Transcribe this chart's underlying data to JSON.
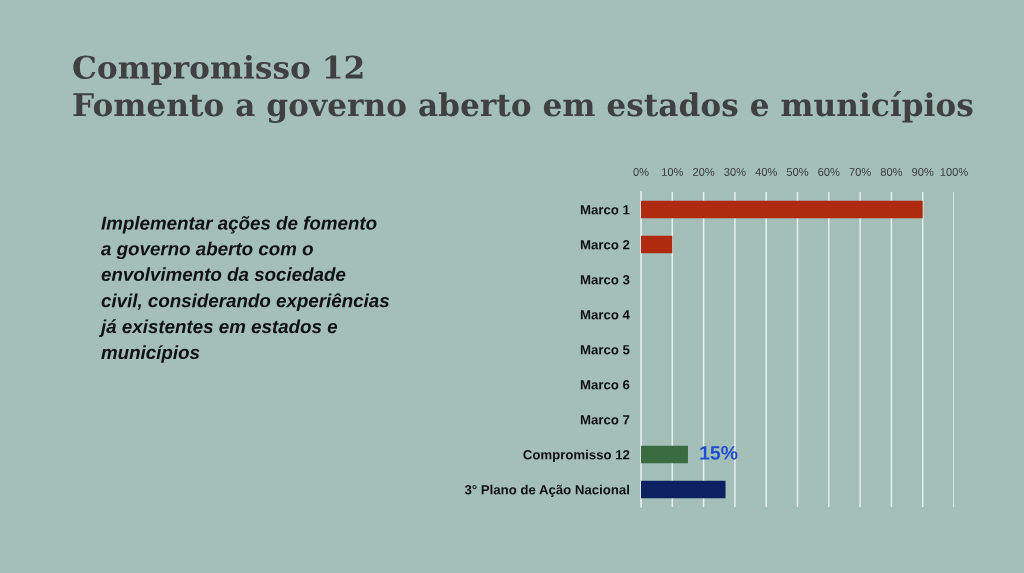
{
  "chart_data": {
    "type": "bar",
    "orientation": "horizontal",
    "title": "Compromisso 12",
    "subtitle": "Fomento a governo aberto em estados e municípios",
    "annotations": [
      "Implementar ações de fomento a governo aberto com o envolvimento da sociedade civil, considerando experiências já existentes em estados e municípios"
    ],
    "categories": [
      "Marco 1",
      "Marco 2",
      "Marco 3",
      "Marco 4",
      "Marco 5",
      "Marco 6",
      "Marco 7",
      "Compromisso 12",
      "3° Plano de Ação Nacional"
    ],
    "values": [
      90,
      10,
      0,
      0,
      0,
      0,
      0,
      15,
      27
    ],
    "colors": [
      "#b02a10",
      "#b02a10",
      "#b02a10",
      "#b02a10",
      "#b02a10",
      "#b02a10",
      "#b02a10",
      "#3b6b40",
      "#0d2160"
    ],
    "value_labels": [
      null,
      null,
      null,
      null,
      null,
      null,
      null,
      "15%",
      null
    ],
    "xlim": [
      0,
      100
    ],
    "xticks": [
      {
        "value": 0,
        "label": "0%"
      },
      {
        "value": 10,
        "label": "10%"
      },
      {
        "value": 20,
        "label": "20%"
      },
      {
        "value": 30,
        "label": "30%"
      },
      {
        "value": 40,
        "label": "40%"
      },
      {
        "value": 50,
        "label": "50%"
      },
      {
        "value": 60,
        "label": "60%"
      },
      {
        "value": 70,
        "label": "70%"
      },
      {
        "value": 80,
        "label": "80%"
      },
      {
        "value": 90,
        "label": "90%"
      },
      {
        "value": 100,
        "label": "100%"
      }
    ],
    "grid": "x"
  }
}
